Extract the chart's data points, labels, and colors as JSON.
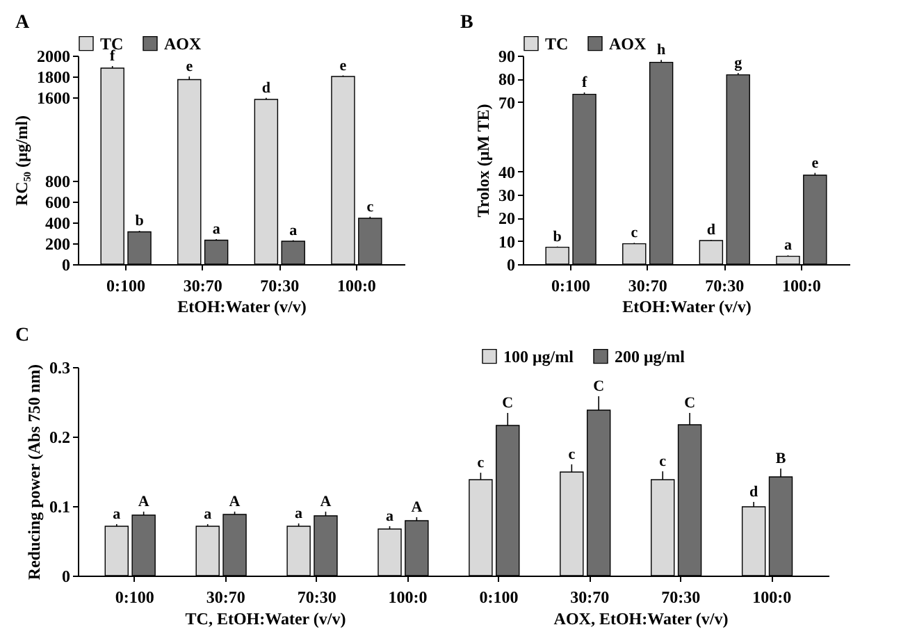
{
  "chart_data": [
    {
      "type": "bar",
      "title": "A",
      "categories": [
        "0:100",
        "30:70",
        "70:30",
        "100:0"
      ],
      "ylim": [
        0,
        2000
      ],
      "yticks": [
        0,
        200,
        400,
        600,
        800,
        1600,
        1800,
        2000
      ],
      "ylabel": "RC₅₀ (μg/ml)",
      "xlabel": "EtOH:Water (v/v)",
      "legend": "top",
      "series": [
        {
          "name": "TC",
          "color": "#d9d9d9",
          "values": [
            1880,
            1770,
            1580,
            1800
          ],
          "errors": [
            20,
            30,
            15,
            10
          ],
          "value_labels": [
            "f",
            "e",
            "d",
            "e"
          ]
        },
        {
          "name": "AOX",
          "color": "#6e6e6e",
          "values": [
            310,
            230,
            220,
            440
          ],
          "errors": [
            10,
            10,
            10,
            15
          ],
          "value_labels": [
            "b",
            "a",
            "a",
            "c"
          ]
        }
      ]
    },
    {
      "type": "bar",
      "title": "B",
      "categories": [
        "0:100",
        "30:70",
        "70:30",
        "100:0"
      ],
      "ylim": [
        0,
        90
      ],
      "yticks": [
        0,
        10,
        20,
        30,
        40,
        70,
        80,
        90
      ],
      "ylabel": "Trolox (μM TE)",
      "xlabel": "EtOH:Water (v/v)",
      "legend": "top",
      "series": [
        {
          "name": "TC",
          "color": "#d9d9d9",
          "values": [
            7.3,
            8.8,
            10.2,
            3.4
          ],
          "errors": [
            0.3,
            0.4,
            0.3,
            0.4
          ],
          "value_labels": [
            "b",
            "c",
            "d",
            "a"
          ]
        },
        {
          "name": "AOX",
          "color": "#6e6e6e",
          "values": [
            73.3,
            87.1,
            81.7,
            38.4
          ],
          "errors": [
            0.8,
            1,
            0.8,
            1
          ],
          "value_labels": [
            "f",
            "h",
            "g",
            "e"
          ]
        }
      ]
    },
    {
      "type": "bar",
      "title": "C",
      "categories": [
        "0:100",
        "30:70",
        "70:30",
        "100:0",
        "0:100",
        "30:70",
        "70:30",
        "100:0"
      ],
      "ylim": [
        0,
        0.3
      ],
      "yticks": [
        0,
        0.1,
        0.2,
        0.3
      ],
      "ylabel": "Reducing power (Abs 750 nm)",
      "legend": "top right",
      "annotations": [
        "TC, EtOH:Water (v/v)",
        "AOX, EtOH:Water (v/v)"
      ],
      "series": [
        {
          "name": "100 μg/ml",
          "color": "#d9d9d9",
          "values": [
            0.071,
            0.071,
            0.071,
            0.067,
            0.138,
            0.149,
            0.138,
            0.099
          ],
          "errors": [
            0.003,
            0.003,
            0.004,
            0.004,
            0.01,
            0.011,
            0.012,
            0.007
          ],
          "value_labels": [
            "a",
            "a",
            "a",
            "a",
            "c",
            "c",
            "c",
            "d"
          ]
        },
        {
          "name": "200 μg/ml",
          "color": "#6e6e6e",
          "values": [
            0.087,
            0.088,
            0.086,
            0.079,
            0.216,
            0.238,
            0.217,
            0.142
          ],
          "errors": [
            0.005,
            0.004,
            0.006,
            0.005,
            0.018,
            0.02,
            0.017,
            0.012
          ],
          "value_labels": [
            "A",
            "A",
            "A",
            "A",
            "C",
            "C",
            "C",
            "B"
          ]
        }
      ]
    }
  ]
}
